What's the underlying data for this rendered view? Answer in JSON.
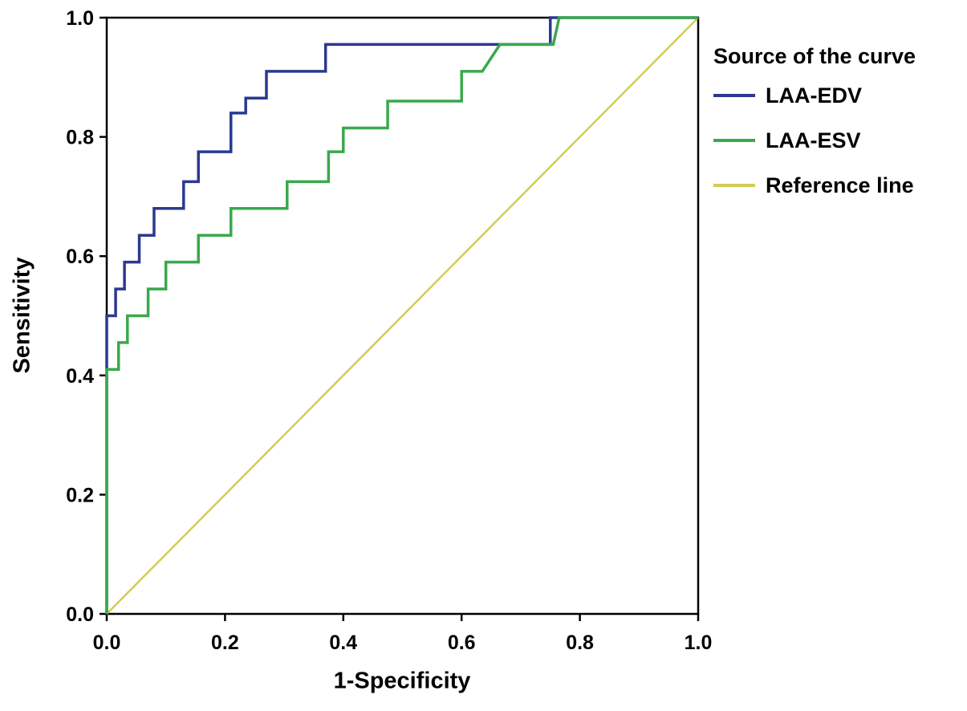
{
  "chart_data": {
    "type": "line",
    "subtype": "roc-curve",
    "title": "",
    "xlabel": "1-Specificity",
    "ylabel": "Sensitivity",
    "xlim": [
      0,
      1
    ],
    "ylim": [
      0,
      1
    ],
    "x_ticks": [
      0.0,
      0.2,
      0.4,
      0.6,
      0.8,
      1.0
    ],
    "x_tick_labels": [
      "0.0",
      "0.2",
      "0.4",
      "0.6",
      "0.8",
      "1.0"
    ],
    "y_ticks": [
      0.0,
      0.2,
      0.4,
      0.6,
      0.8,
      1.0
    ],
    "y_tick_labels": [
      "0.0",
      "0.2",
      "0.4",
      "0.6",
      "0.8",
      "1.0"
    ],
    "grid": false,
    "frame": "full-box",
    "legend_title": "Source of the curve",
    "legend_position": "right-top",
    "draw_order": [
      2,
      0,
      1
    ],
    "series": [
      {
        "name": "LAA-EDV",
        "color": "#2b3990",
        "line_width": 3.5,
        "points": [
          [
            0,
            0
          ],
          [
            0,
            0.5
          ],
          [
            0.015,
            0.5
          ],
          [
            0.015,
            0.545
          ],
          [
            0.03,
            0.545
          ],
          [
            0.03,
            0.59
          ],
          [
            0.055,
            0.59
          ],
          [
            0.055,
            0.635
          ],
          [
            0.08,
            0.635
          ],
          [
            0.08,
            0.68
          ],
          [
            0.13,
            0.68
          ],
          [
            0.13,
            0.725
          ],
          [
            0.155,
            0.725
          ],
          [
            0.155,
            0.775
          ],
          [
            0.21,
            0.775
          ],
          [
            0.21,
            0.84
          ],
          [
            0.235,
            0.84
          ],
          [
            0.235,
            0.865
          ],
          [
            0.27,
            0.865
          ],
          [
            0.27,
            0.91
          ],
          [
            0.37,
            0.91
          ],
          [
            0.37,
            0.955
          ],
          [
            0.75,
            0.955
          ],
          [
            0.75,
            1.0
          ],
          [
            1,
            1
          ]
        ]
      },
      {
        "name": "LAA-ESV",
        "color": "#39a94c",
        "line_width": 3.5,
        "points": [
          [
            0,
            0
          ],
          [
            0,
            0.41
          ],
          [
            0.02,
            0.41
          ],
          [
            0.02,
            0.455
          ],
          [
            0.035,
            0.455
          ],
          [
            0.035,
            0.5
          ],
          [
            0.07,
            0.5
          ],
          [
            0.07,
            0.545
          ],
          [
            0.1,
            0.545
          ],
          [
            0.1,
            0.59
          ],
          [
            0.155,
            0.59
          ],
          [
            0.155,
            0.635
          ],
          [
            0.21,
            0.635
          ],
          [
            0.21,
            0.68
          ],
          [
            0.305,
            0.68
          ],
          [
            0.305,
            0.725
          ],
          [
            0.375,
            0.725
          ],
          [
            0.375,
            0.775
          ],
          [
            0.4,
            0.775
          ],
          [
            0.4,
            0.815
          ],
          [
            0.475,
            0.815
          ],
          [
            0.475,
            0.86
          ],
          [
            0.6,
            0.86
          ],
          [
            0.6,
            0.91
          ],
          [
            0.635,
            0.91
          ],
          [
            0.665,
            0.955
          ],
          [
            0.755,
            0.955
          ],
          [
            0.765,
            1.0
          ],
          [
            1,
            1
          ]
        ]
      },
      {
        "name": "Reference line",
        "color": "#d4cb57",
        "line_width": 2.5,
        "points": [
          [
            0,
            0
          ],
          [
            1,
            1
          ]
        ]
      }
    ]
  }
}
